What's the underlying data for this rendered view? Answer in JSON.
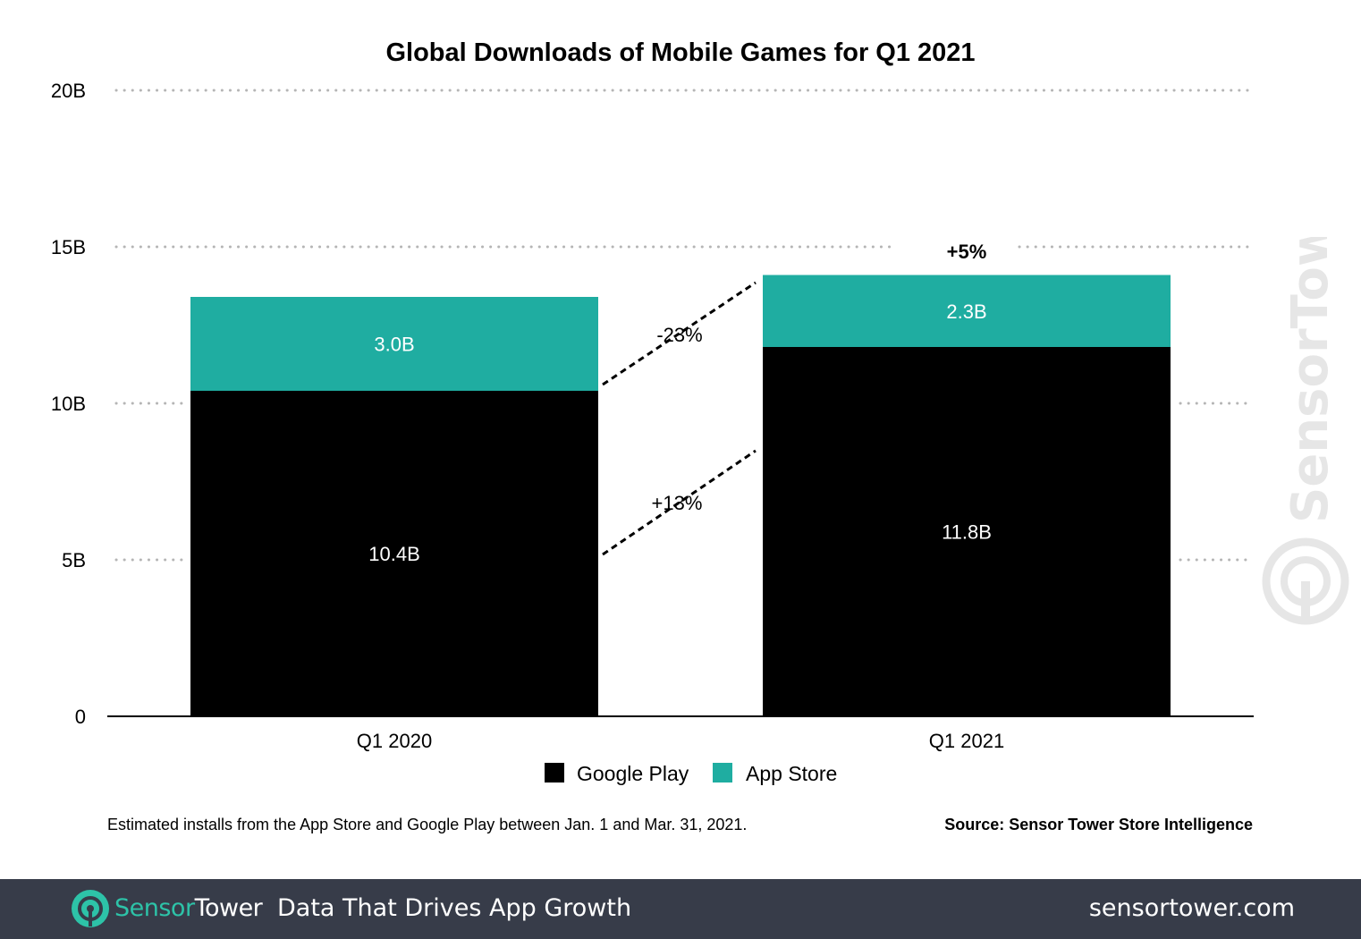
{
  "chart_data": {
    "type": "bar",
    "stacked": true,
    "title": "Global Downloads of Mobile Games for Q1 2021",
    "categories": [
      "Q1 2020",
      "Q1 2021"
    ],
    "series": [
      {
        "name": "Google Play",
        "values": [
          10.4,
          11.8
        ],
        "labels": [
          "10.4B",
          "11.8B"
        ],
        "color": "#000000"
      },
      {
        "name": "App Store",
        "values": [
          3.0,
          2.3
        ],
        "labels": [
          "3.0B",
          "2.3B"
        ],
        "color": "#1fada1"
      }
    ],
    "ylim": [
      0,
      20
    ],
    "yticks": [
      {
        "value": 0,
        "label": "0"
      },
      {
        "value": 5,
        "label": "5B"
      },
      {
        "value": 10,
        "label": "10B"
      },
      {
        "value": 15,
        "label": "15B"
      },
      {
        "value": 20,
        "label": "20B"
      }
    ],
    "grid": true,
    "legend_position": "bottom",
    "annotations": {
      "total_change": "+5%",
      "app_store_change": "-23%",
      "google_play_change": "+13%"
    }
  },
  "footnote": "Estimated installs from the App Store and Google Play between Jan. 1 and Mar. 31, 2021.",
  "source": "Source: Sensor Tower Store Intelligence",
  "watermark_text": "SensorTower",
  "footer": {
    "brand_part1": "Sensor",
    "brand_part2": "Tower",
    "tagline": "Data That Drives App Growth",
    "site": "sensortower.com",
    "logo_icon": "sensortower-logo-icon"
  },
  "colors": {
    "google_play": "#000000",
    "app_store": "#1fada1",
    "footer_bg": "#373c49",
    "brand_accent": "#2dc3a8"
  }
}
